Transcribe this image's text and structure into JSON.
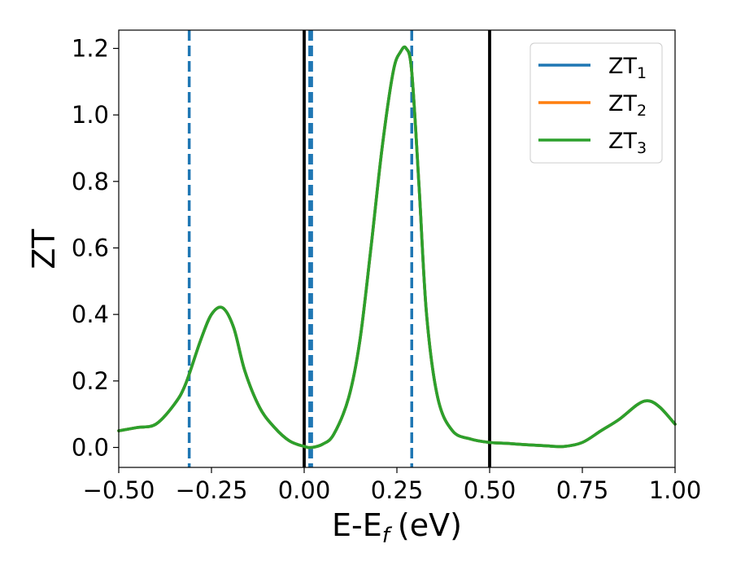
{
  "chart_data": {
    "type": "line",
    "xlabel": "E-E",
    "xlabel_sub": "f",
    "xlabel_unit": "(eV)",
    "ylabel": "ZT",
    "xlim": [
      -0.5,
      1.0
    ],
    "ylim": [
      -0.06,
      1.255
    ],
    "xticks": [
      -0.5,
      -0.25,
      0.0,
      0.25,
      0.5,
      0.75,
      1.0
    ],
    "xtick_labels": [
      "−0.50",
      "−0.25",
      "0.00",
      "0.25",
      "0.50",
      "0.75",
      "1.00"
    ],
    "yticks": [
      0.0,
      0.2,
      0.4,
      0.6,
      0.8,
      1.0,
      1.2
    ],
    "ytick_labels": [
      "0.0",
      "0.2",
      "0.4",
      "0.6",
      "0.8",
      "1.0",
      "1.2"
    ],
    "grid": false,
    "legend_position": "top-right",
    "colors": {
      "ZT1": "#1f77b4",
      "ZT2": "#ff7f0e",
      "ZT3": "#2ca02c",
      "vline_solid": "#000000",
      "vline_dashed": "#1f77b4"
    },
    "series": [
      {
        "name": "ZT",
        "name_sub": "1",
        "color": "#1f77b4",
        "x": [
          -0.5,
          -0.45,
          -0.4,
          -0.35,
          -0.32,
          -0.28,
          -0.25,
          -0.22,
          -0.19,
          -0.16,
          -0.12,
          -0.08,
          -0.04,
          0.0,
          0.02,
          0.05,
          0.08,
          0.12,
          0.15,
          0.18,
          0.21,
          0.24,
          0.26,
          0.275,
          0.29,
          0.31,
          0.33,
          0.36,
          0.4,
          0.45,
          0.5,
          0.55,
          0.6,
          0.65,
          0.7,
          0.75,
          0.8,
          0.85,
          0.9,
          0.93,
          0.96,
          1.0
        ],
        "y": [
          0.05,
          0.06,
          0.07,
          0.13,
          0.19,
          0.32,
          0.4,
          0.42,
          0.36,
          0.23,
          0.12,
          0.06,
          0.02,
          0.003,
          0.0,
          0.01,
          0.04,
          0.15,
          0.32,
          0.6,
          0.9,
          1.13,
          1.19,
          1.2,
          1.13,
          0.78,
          0.4,
          0.15,
          0.05,
          0.025,
          0.015,
          0.012,
          0.008,
          0.005,
          0.003,
          0.015,
          0.05,
          0.085,
          0.13,
          0.14,
          0.12,
          0.07
        ]
      },
      {
        "name": "ZT",
        "name_sub": "2",
        "color": "#ff7f0e",
        "x": [
          -0.5,
          -0.45,
          -0.4,
          -0.35,
          -0.32,
          -0.28,
          -0.25,
          -0.22,
          -0.19,
          -0.16,
          -0.12,
          -0.08,
          -0.04,
          0.0,
          0.02,
          0.05,
          0.08,
          0.12,
          0.15,
          0.18,
          0.21,
          0.24,
          0.26,
          0.275,
          0.29,
          0.31,
          0.33,
          0.36,
          0.4,
          0.45,
          0.5,
          0.55,
          0.6,
          0.65,
          0.7,
          0.75,
          0.8,
          0.85,
          0.9,
          0.93,
          0.96,
          1.0
        ],
        "y": [
          0.05,
          0.06,
          0.07,
          0.13,
          0.19,
          0.32,
          0.4,
          0.42,
          0.36,
          0.23,
          0.12,
          0.06,
          0.02,
          0.003,
          0.0,
          0.01,
          0.04,
          0.15,
          0.32,
          0.6,
          0.9,
          1.13,
          1.19,
          1.2,
          1.13,
          0.78,
          0.4,
          0.15,
          0.05,
          0.025,
          0.015,
          0.012,
          0.008,
          0.005,
          0.003,
          0.015,
          0.05,
          0.085,
          0.13,
          0.14,
          0.12,
          0.07
        ]
      },
      {
        "name": "ZT",
        "name_sub": "3",
        "color": "#2ca02c",
        "x": [
          -0.5,
          -0.45,
          -0.4,
          -0.35,
          -0.32,
          -0.28,
          -0.25,
          -0.22,
          -0.19,
          -0.16,
          -0.12,
          -0.08,
          -0.04,
          0.0,
          0.02,
          0.05,
          0.08,
          0.12,
          0.15,
          0.18,
          0.21,
          0.24,
          0.26,
          0.275,
          0.29,
          0.31,
          0.33,
          0.36,
          0.4,
          0.45,
          0.5,
          0.55,
          0.6,
          0.65,
          0.7,
          0.75,
          0.8,
          0.85,
          0.9,
          0.93,
          0.96,
          1.0
        ],
        "y": [
          0.05,
          0.06,
          0.07,
          0.13,
          0.19,
          0.32,
          0.4,
          0.42,
          0.36,
          0.23,
          0.12,
          0.06,
          0.02,
          0.003,
          0.0,
          0.01,
          0.04,
          0.15,
          0.32,
          0.6,
          0.9,
          1.13,
          1.19,
          1.2,
          1.13,
          0.78,
          0.4,
          0.15,
          0.05,
          0.025,
          0.015,
          0.012,
          0.008,
          0.005,
          0.003,
          0.015,
          0.05,
          0.085,
          0.13,
          0.14,
          0.12,
          0.07
        ]
      }
    ],
    "vlines": [
      {
        "x": 0.0,
        "style": "solid",
        "color": "#000000"
      },
      {
        "x": 0.5,
        "style": "solid",
        "color": "#000000"
      },
      {
        "x": -0.31,
        "style": "dashed",
        "color": "#1f77b4"
      },
      {
        "x": 0.015,
        "style": "dashed",
        "color": "#1f77b4"
      },
      {
        "x": 0.02,
        "style": "dashed",
        "color": "#1f77b4"
      },
      {
        "x": 0.29,
        "style": "dashed",
        "color": "#1f77b4"
      }
    ]
  }
}
